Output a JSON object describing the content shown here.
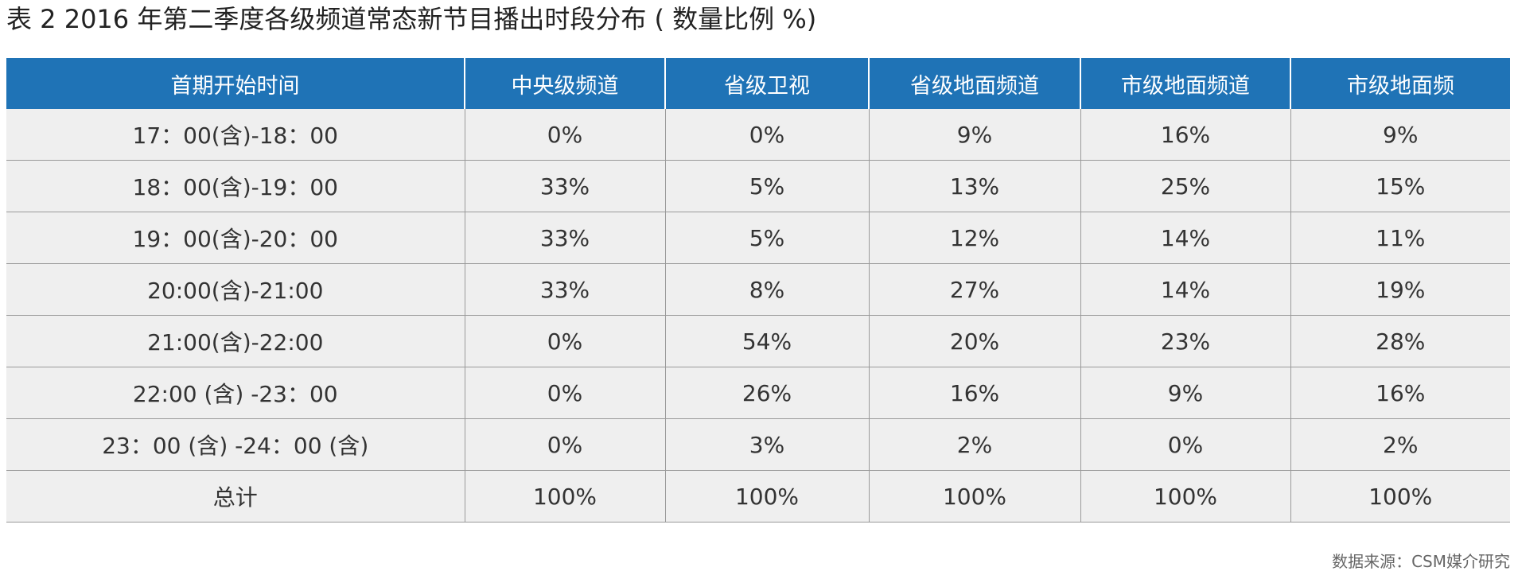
{
  "title": "表 2  2016 年第二季度各级频道常态新节目播出时段分布 ( 数量比例 %)",
  "colors": {
    "header_background": "#1f73b6",
    "header_text": "#ffffff",
    "row_background": "#efefef",
    "grid_line": "#9a9a9a"
  },
  "table": {
    "headers": [
      "首期开始时间",
      "中央级频道",
      "省级卫视",
      "省级地面频道",
      "市级地面频道",
      "市级地面频"
    ],
    "rows": [
      [
        "17：00(含)-18：00",
        "0%",
        "0%",
        "9%",
        "16%",
        "9%"
      ],
      [
        "18：00(含)-19：00",
        "33%",
        "5%",
        "13%",
        "25%",
        "15%"
      ],
      [
        "19：00(含)-20：00",
        "33%",
        "5%",
        "12%",
        "14%",
        "11%"
      ],
      [
        "20:00(含)-21:00",
        "33%",
        "8%",
        "27%",
        "14%",
        "19%"
      ],
      [
        "21:00(含)-22:00",
        "0%",
        "54%",
        "20%",
        "23%",
        "28%"
      ],
      [
        "22:00 (含) -23：00",
        "0%",
        "26%",
        "16%",
        "9%",
        "16%"
      ],
      [
        "23：00 (含) -24：00 (含)",
        "0%",
        "3%",
        "2%",
        "0%",
        "2%"
      ],
      [
        "总计",
        "100%",
        "100%",
        "100%",
        "100%",
        "100%"
      ]
    ]
  },
  "source": "数据来源：CSM媒介研究"
}
